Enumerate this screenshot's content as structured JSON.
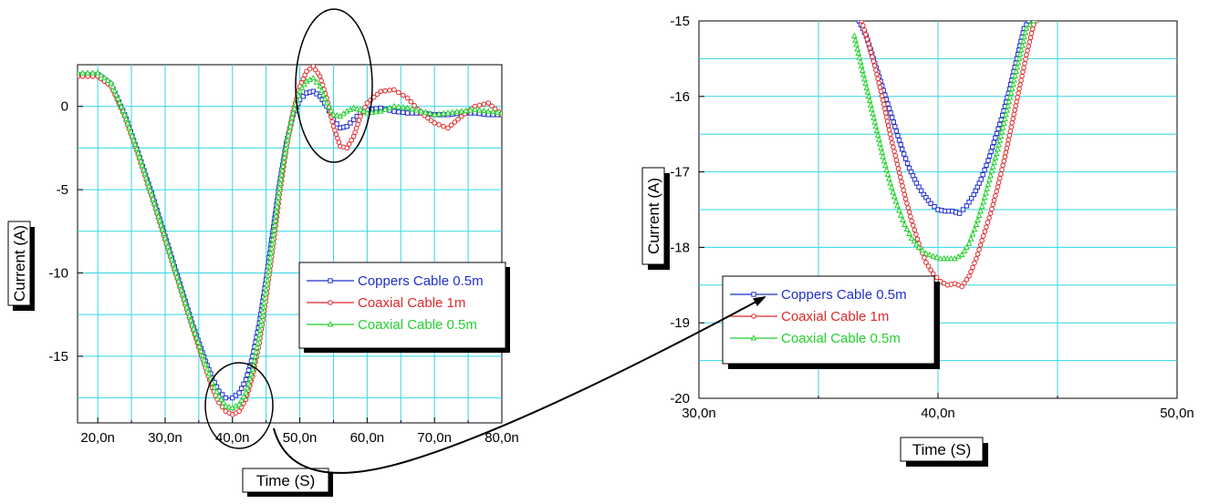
{
  "chart_data": [
    {
      "type": "line",
      "xlabel": "Time (S)",
      "ylabel": "Current (A)",
      "xlim": [
        17,
        80
      ],
      "ylim": [
        -19,
        2.5
      ],
      "xticks": [
        20,
        30,
        40,
        50,
        60,
        70,
        80
      ],
      "xtick_labels": [
        "20,0n",
        "30,0n",
        "40,0n",
        "50,0n",
        "60,0n",
        "70,0n",
        "80,0n"
      ],
      "yticks": [
        0,
        -5,
        -10,
        -15
      ],
      "ytick_labels": [
        "0",
        "-5",
        "-10",
        "-15"
      ],
      "grid": true,
      "legend_position": "lower-right",
      "series": [
        {
          "name": "Coppers Cable  0.5m",
          "color": "#1f2fd0",
          "marker": "square",
          "x": [
            17,
            20,
            22,
            24,
            26,
            28,
            30,
            32,
            34,
            36,
            37,
            38,
            39,
            40,
            41,
            42,
            43,
            44,
            45,
            46,
            47,
            48,
            49,
            50,
            51,
            52,
            53,
            54,
            55,
            56,
            57,
            58,
            59,
            60,
            62,
            64,
            66,
            68,
            70,
            72,
            74,
            76,
            78,
            80
          ],
          "y": [
            1.9,
            1.9,
            1.3,
            -0.5,
            -2.8,
            -5.2,
            -7.8,
            -10.4,
            -13.0,
            -15.3,
            -16.3,
            -17.1,
            -17.5,
            -17.5,
            -17.2,
            -16.4,
            -15.0,
            -13.0,
            -10.4,
            -7.5,
            -4.6,
            -2.2,
            -0.5,
            0.4,
            0.8,
            0.9,
            0.6,
            0.0,
            -0.8,
            -1.3,
            -1.2,
            -0.8,
            -0.4,
            -0.2,
            -0.1,
            -0.3,
            -0.4,
            -0.4,
            -0.5,
            -0.5,
            -0.4,
            -0.4,
            -0.5,
            -0.5
          ]
        },
        {
          "name": "Coaxial Cable  1m",
          "color": "#e0282a",
          "marker": "circle",
          "x": [
            17,
            20,
            22,
            24,
            26,
            28,
            30,
            32,
            34,
            36,
            37,
            38,
            39,
            40,
            41,
            42,
            43,
            44,
            45,
            46,
            47,
            48,
            49,
            50,
            51,
            52,
            53,
            54,
            55,
            56,
            57,
            58,
            59,
            60,
            62,
            64,
            66,
            68,
            70,
            72,
            74,
            76,
            78,
            80
          ],
          "y": [
            1.8,
            1.8,
            1.2,
            -0.6,
            -2.9,
            -5.4,
            -8.0,
            -10.6,
            -13.2,
            -15.7,
            -16.9,
            -17.8,
            -18.3,
            -18.5,
            -18.3,
            -17.6,
            -16.2,
            -14.2,
            -11.5,
            -8.5,
            -5.3,
            -2.5,
            -0.3,
            1.2,
            2.1,
            2.4,
            1.8,
            0.5,
            -1.2,
            -2.4,
            -2.5,
            -1.8,
            -0.6,
            0.2,
            0.9,
            1.0,
            0.5,
            -0.4,
            -1.0,
            -1.3,
            -0.6,
            0.0,
            0.2,
            -0.5
          ]
        },
        {
          "name": "Coaxial Cable  0.5m",
          "color": "#23d12e",
          "marker": "triangle",
          "x": [
            17,
            20,
            22,
            24,
            26,
            28,
            30,
            32,
            34,
            36,
            37,
            38,
            39,
            40,
            41,
            42,
            43,
            44,
            45,
            46,
            47,
            48,
            49,
            50,
            51,
            52,
            53,
            54,
            55,
            56,
            57,
            58,
            59,
            60,
            62,
            64,
            66,
            68,
            70,
            72,
            74,
            76,
            78,
            80
          ],
          "y": [
            2.0,
            2.0,
            1.4,
            -0.5,
            -2.8,
            -5.3,
            -7.9,
            -10.5,
            -13.1,
            -15.5,
            -16.6,
            -17.4,
            -18.0,
            -18.1,
            -17.9,
            -17.2,
            -15.8,
            -13.7,
            -11.0,
            -8.0,
            -4.9,
            -2.3,
            -0.4,
            0.9,
            1.5,
            1.7,
            1.2,
            0.2,
            -0.5,
            -0.6,
            -0.3,
            -0.1,
            -0.2,
            -0.4,
            -0.3,
            0.0,
            -0.1,
            -0.3,
            -0.5,
            -0.4,
            -0.3,
            -0.2,
            -0.3,
            -0.4
          ]
        }
      ]
    },
    {
      "type": "line",
      "xlabel": "Time (S)",
      "ylabel": "Current (A)",
      "xlim": [
        30,
        50
      ],
      "ylim": [
        -20,
        -15
      ],
      "xticks": [
        30,
        40,
        50
      ],
      "xtick_labels": [
        "30,0n",
        "40,0n",
        "50,0n"
      ],
      "yticks": [
        -15,
        -16,
        -17,
        -18,
        -19,
        -20
      ],
      "ytick_labels": [
        "-15",
        "-16",
        "-17",
        "-18",
        "-19",
        "-20"
      ],
      "grid": true,
      "legend_position": "lower-left",
      "series": [
        {
          "name": "Coppers Cable  0.5m",
          "color": "#1f2fd0",
          "marker": "square",
          "x": [
            36.7,
            37.0,
            37.3,
            37.6,
            37.9,
            38.2,
            38.5,
            38.8,
            39.1,
            39.4,
            39.7,
            40.0,
            40.3,
            40.6,
            40.9,
            41.2,
            41.5,
            41.8,
            42.1,
            42.4,
            42.7,
            43.0,
            43.3,
            43.6,
            43.8
          ],
          "y": [
            -15.0,
            -15.2,
            -15.5,
            -15.8,
            -16.1,
            -16.4,
            -16.7,
            -16.95,
            -17.15,
            -17.3,
            -17.42,
            -17.5,
            -17.52,
            -17.52,
            -17.55,
            -17.45,
            -17.3,
            -17.1,
            -16.85,
            -16.55,
            -16.25,
            -15.9,
            -15.5,
            -15.1,
            -15.0
          ]
        },
        {
          "name": "Coaxial Cable  1m",
          "color": "#e0282a",
          "marker": "circle",
          "x": [
            36.8,
            37.1,
            37.4,
            37.7,
            38.0,
            38.3,
            38.6,
            38.9,
            39.2,
            39.5,
            39.8,
            40.1,
            40.4,
            40.7,
            41.0,
            41.3,
            41.6,
            41.9,
            42.2,
            42.5,
            42.8,
            43.1,
            43.4,
            43.7,
            44.0,
            44.1
          ],
          "y": [
            -15.0,
            -15.3,
            -15.65,
            -16.05,
            -16.5,
            -16.9,
            -17.3,
            -17.65,
            -17.95,
            -18.2,
            -18.35,
            -18.45,
            -18.5,
            -18.48,
            -18.52,
            -18.38,
            -18.15,
            -17.85,
            -17.55,
            -17.2,
            -16.8,
            -16.35,
            -15.9,
            -15.45,
            -15.05,
            -15.0
          ]
        },
        {
          "name": "Coaxial Cable  0.5m",
          "color": "#23d12e",
          "marker": "triangle",
          "x": [
            36.5,
            36.8,
            37.1,
            37.4,
            37.7,
            38.0,
            38.3,
            38.6,
            38.9,
            39.2,
            39.5,
            39.8,
            40.1,
            40.4,
            40.7,
            41.0,
            41.3,
            41.6,
            41.9,
            42.2,
            42.5,
            42.8,
            43.1,
            43.4,
            43.7,
            44.0
          ],
          "y": [
            -15.2,
            -15.6,
            -16.0,
            -16.4,
            -16.8,
            -17.15,
            -17.45,
            -17.7,
            -17.88,
            -18.0,
            -18.08,
            -18.12,
            -18.15,
            -18.15,
            -18.15,
            -18.1,
            -17.95,
            -17.7,
            -17.4,
            -17.05,
            -16.7,
            -16.3,
            -15.9,
            -15.5,
            -15.1,
            -15.0
          ]
        }
      ]
    }
  ]
}
